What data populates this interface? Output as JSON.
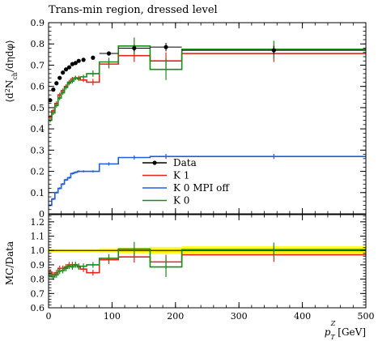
{
  "chart_data": {
    "type": "line",
    "title": "Trans-min region, dressed level",
    "xlabel": "p_T^Z [GeV]",
    "xlabel_main": "p",
    "xlabel_sub": "T",
    "xlabel_sup": "Z",
    "xlabel_unit": "[GeV]",
    "ylabel": "⟨d²N_ch/dηdφ⟩",
    "ylabel_ratio": "MC/Data",
    "xlim": [
      0,
      500
    ],
    "ylim": [
      0,
      0.9
    ],
    "ratio_ylim": [
      0.6,
      1.25
    ],
    "x_ticks": [
      "0",
      "100",
      "200",
      "300",
      "400",
      "500"
    ],
    "y_ticks": [
      "0",
      "0.1",
      "0.2",
      "0.3",
      "0.4",
      "0.5",
      "0.6",
      "0.7",
      "0.8",
      "0.9"
    ],
    "ratio_ticks": [
      "0.6",
      "0.7",
      "0.8",
      "0.9",
      "1.0",
      "1.1",
      "1.2"
    ],
    "legend_position": "center-right",
    "bin_edges": [
      0,
      5,
      10,
      15,
      20,
      25,
      30,
      35,
      40,
      45,
      50,
      60,
      80,
      110,
      160,
      210,
      500
    ],
    "colors": {
      "data": "#000000",
      "k1": "#e8231a",
      "k0mpi": "#1e5ee0",
      "k0": "#1a8a1a",
      "band_outer": "#ffff33",
      "band_inner": "#ffe600"
    },
    "series": [
      {
        "name": "Data",
        "type": "points",
        "x": [
          2.5,
          7.5,
          12.5,
          17.5,
          22.5,
          27.5,
          32.5,
          37.5,
          42.5,
          47.5,
          55,
          70,
          95,
          135,
          185,
          355
        ],
        "y": [
          0.535,
          0.585,
          0.615,
          0.64,
          0.665,
          0.68,
          0.69,
          0.705,
          0.71,
          0.72,
          0.725,
          0.735,
          0.755,
          0.78,
          0.785,
          0.77
        ],
        "yerr": [
          0.005,
          0.005,
          0.005,
          0.005,
          0.005,
          0.005,
          0.005,
          0.005,
          0.005,
          0.005,
          0.005,
          0.006,
          0.01,
          0.015,
          0.02,
          0.02
        ]
      },
      {
        "name": "K 1",
        "type": "histogram",
        "values": [
          0.455,
          0.485,
          0.52,
          0.56,
          0.58,
          0.6,
          0.62,
          0.635,
          0.64,
          0.64,
          0.63,
          0.62,
          0.705,
          0.745,
          0.72,
          0.755
        ],
        "yerr": [
          0.01,
          0.01,
          0.01,
          0.01,
          0.01,
          0.01,
          0.01,
          0.01,
          0.01,
          0.01,
          0.01,
          0.015,
          0.02,
          0.03,
          0.04,
          0.04
        ]
      },
      {
        "name": "K 0 MPI off",
        "type": "histogram",
        "values": [
          0.04,
          0.07,
          0.1,
          0.12,
          0.14,
          0.16,
          0.17,
          0.19,
          0.195,
          0.2,
          0.2,
          0.2,
          0.235,
          0.265,
          0.27,
          0.27
        ],
        "yerr": [
          0.005,
          0.005,
          0.005,
          0.005,
          0.005,
          0.005,
          0.005,
          0.005,
          0.005,
          0.005,
          0.005,
          0.005,
          0.008,
          0.01,
          0.012,
          0.012
        ]
      },
      {
        "name": "K 0",
        "type": "histogram",
        "values": [
          0.44,
          0.475,
          0.51,
          0.545,
          0.57,
          0.595,
          0.615,
          0.625,
          0.64,
          0.635,
          0.645,
          0.66,
          0.715,
          0.79,
          0.68,
          0.775
        ],
        "yerr": [
          0.01,
          0.01,
          0.01,
          0.01,
          0.01,
          0.01,
          0.01,
          0.01,
          0.01,
          0.01,
          0.01,
          0.015,
          0.02,
          0.04,
          0.05,
          0.04
        ]
      }
    ],
    "ratio": {
      "band_halfwidth": [
        0.01,
        0.01,
        0.01,
        0.01,
        0.01,
        0.01,
        0.01,
        0.01,
        0.01,
        0.01,
        0.01,
        0.01,
        0.015,
        0.02,
        0.025,
        0.03
      ],
      "band_inner_halfwidth": [
        0.005,
        0.005,
        0.005,
        0.005,
        0.005,
        0.005,
        0.005,
        0.005,
        0.005,
        0.005,
        0.005,
        0.005,
        0.007,
        0.01,
        0.012,
        0.015
      ],
      "series": [
        {
          "name": "K 1",
          "values": [
            0.85,
            0.83,
            0.845,
            0.875,
            0.875,
            0.885,
            0.9,
            0.9,
            0.9,
            0.89,
            0.87,
            0.845,
            0.935,
            0.955,
            0.92,
            0.97
          ],
          "yerr": [
            0.02,
            0.02,
            0.02,
            0.02,
            0.02,
            0.02,
            0.02,
            0.02,
            0.02,
            0.02,
            0.02,
            0.02,
            0.03,
            0.04,
            0.05,
            0.05
          ]
        },
        {
          "name": "K 0",
          "values": [
            0.83,
            0.815,
            0.83,
            0.855,
            0.86,
            0.875,
            0.89,
            0.885,
            0.9,
            0.885,
            0.89,
            0.9,
            0.945,
            1.01,
            0.885,
            1.005
          ],
          "yerr": [
            0.02,
            0.02,
            0.02,
            0.02,
            0.02,
            0.02,
            0.02,
            0.02,
            0.02,
            0.02,
            0.02,
            0.02,
            0.03,
            0.05,
            0.07,
            0.05
          ]
        }
      ]
    }
  }
}
